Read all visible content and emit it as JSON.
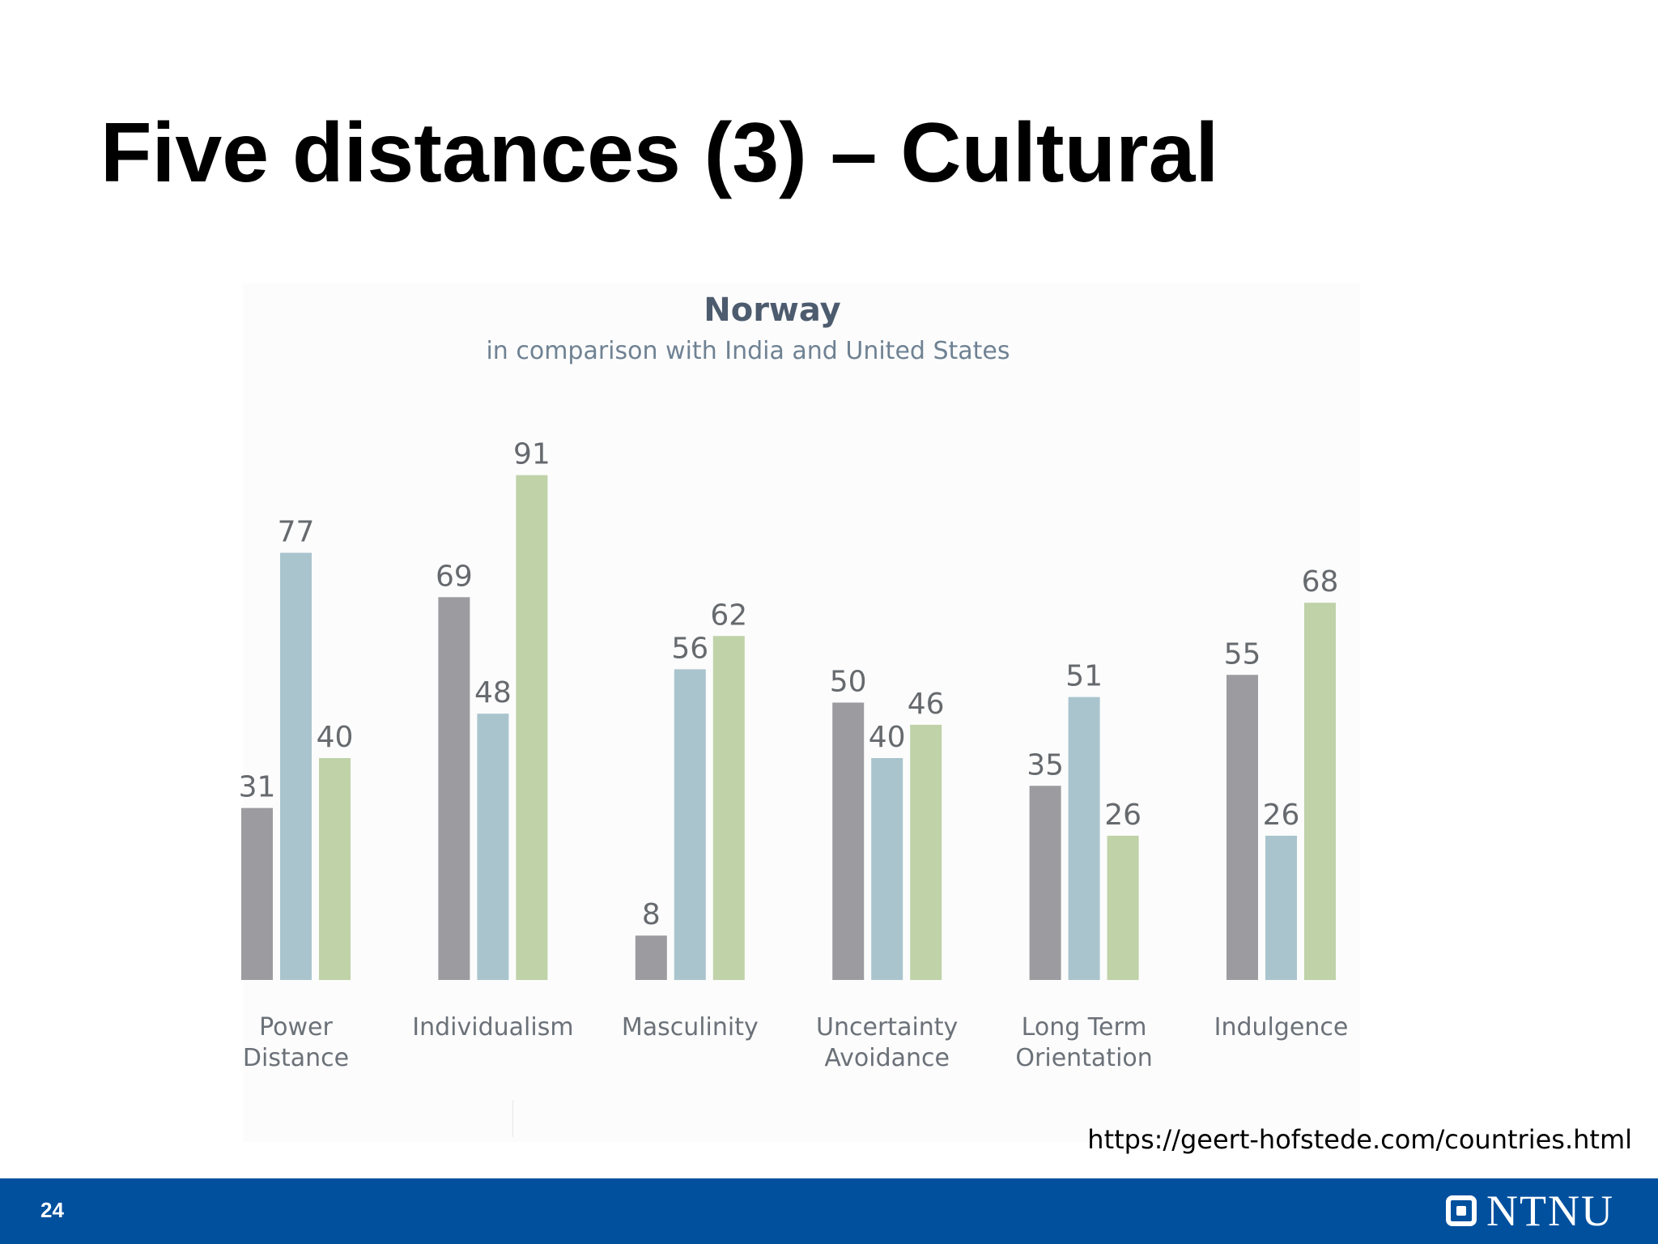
{
  "slide": {
    "title": "Five distances (3) – Cultural",
    "page_number": "24",
    "source": "https://geert-hofstede.com/countries.html",
    "logo_text": "NTNU"
  },
  "colors": {
    "footer": "#00509e",
    "series": [
      "#9c9ca0",
      "#a9c4cd",
      "#bfd2a8"
    ]
  },
  "chart_data": {
    "type": "bar",
    "title": "Norway",
    "subtitle": "in comparison with India and United States",
    "categories": [
      [
        "Power",
        "Distance"
      ],
      [
        "Individualism"
      ],
      [
        "Masculinity"
      ],
      [
        "Uncertainty",
        "Avoidance"
      ],
      [
        "Long Term",
        "Orientation"
      ],
      [
        "Indulgence"
      ]
    ],
    "series": [
      {
        "values": [
          31,
          69,
          8,
          50,
          35,
          55
        ],
        "color": "#9c9ca0"
      },
      {
        "values": [
          77,
          48,
          56,
          40,
          51,
          26
        ],
        "color": "#a9c4cd"
      },
      {
        "values": [
          40,
          91,
          62,
          46,
          26,
          68
        ],
        "color": "#bfd2a8"
      }
    ],
    "ylim": [
      0,
      100
    ],
    "grid": false,
    "legend": false
  }
}
